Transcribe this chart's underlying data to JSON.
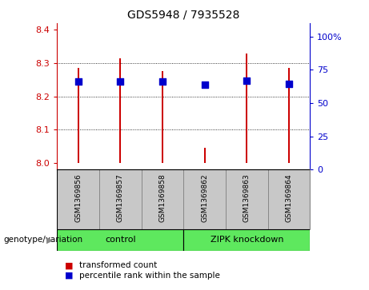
{
  "title": "GDS5948 / 7935528",
  "samples": [
    "GSM1369856",
    "GSM1369857",
    "GSM1369858",
    "GSM1369862",
    "GSM1369863",
    "GSM1369864"
  ],
  "red_values": [
    8.285,
    8.315,
    8.275,
    8.045,
    8.33,
    8.285
  ],
  "blue_values": [
    8.245,
    8.245,
    8.245,
    8.235,
    8.248,
    8.238
  ],
  "ylim_left": [
    7.98,
    8.42
  ],
  "ylim_right": [
    0,
    110
  ],
  "yticks_left": [
    8.0,
    8.1,
    8.2,
    8.3,
    8.4
  ],
  "yticks_right": [
    0,
    25,
    50,
    75,
    100
  ],
  "ytick_labels_right": [
    "0",
    "25",
    "50",
    "75",
    "100%"
  ],
  "grid_values": [
    8.1,
    8.2,
    8.3
  ],
  "bar_color": "#CC0000",
  "dot_color": "#0000CC",
  "bar_width": 0.04,
  "dot_size": 35,
  "legend_red": "transformed count",
  "legend_blue": "percentile rank within the sample",
  "genotype_label": "genotype/variation"
}
